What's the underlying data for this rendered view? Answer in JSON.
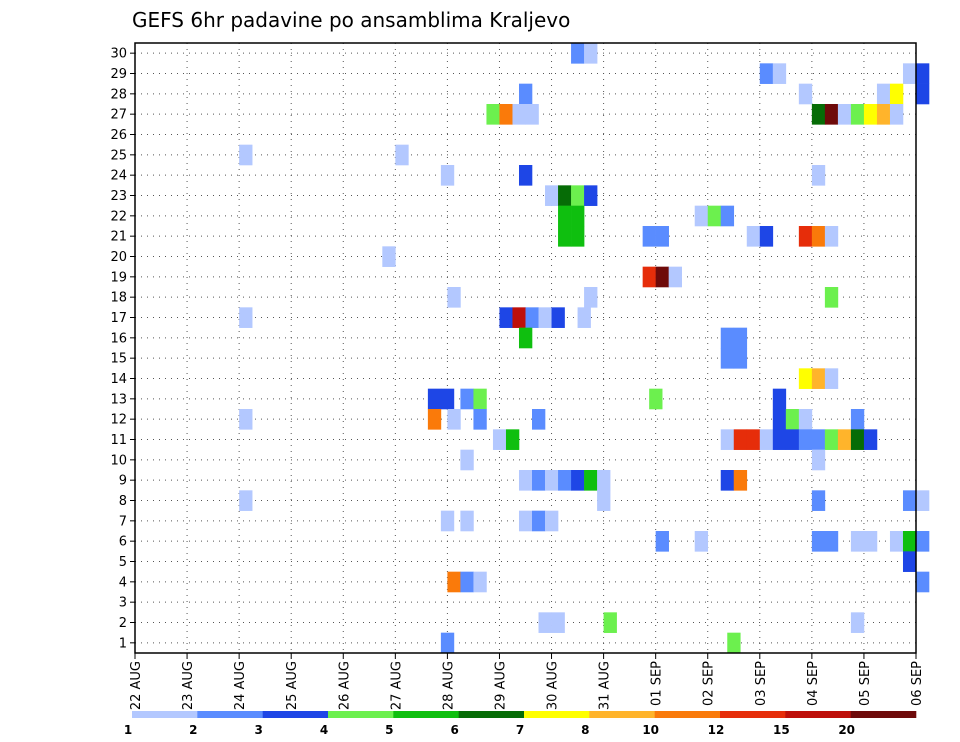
{
  "chart_data": {
    "type": "heatmap",
    "title": "GEFS 6hr padavine po ansamblima Kraljevo",
    "x_tick_labels": [
      "22 AUG",
      "23 AUG",
      "24 AUG",
      "25 AUG",
      "26 AUG",
      "27 AUG",
      "28 AUG",
      "29 AUG",
      "30 AUG",
      "31 AUG",
      "01 SEP",
      "02 SEP",
      "03 SEP",
      "04 SEP",
      "05 SEP",
      "06 SEP"
    ],
    "y_tick_labels": [
      "1",
      "2",
      "3",
      "4",
      "5",
      "6",
      "7",
      "8",
      "9",
      "10",
      "11",
      "12",
      "13",
      "14",
      "15",
      "16",
      "17",
      "18",
      "19",
      "20",
      "21",
      "22",
      "23",
      "24",
      "25",
      "26",
      "27",
      "28",
      "29",
      "30"
    ],
    "x_unit": "6-hour steps from 22 AUG 00Z",
    "x_range": [
      0,
      60
    ],
    "y_range": [
      0.5,
      30.5
    ],
    "grid": true,
    "legend": {
      "position": "bottom",
      "boundary_labels": [
        "1",
        "2",
        "3",
        "4",
        "5",
        "6",
        "7",
        "8",
        "10",
        "12",
        "15",
        "20"
      ],
      "colors": [
        "#b3c8ff",
        "#5a8cff",
        "#1e46e6",
        "#6cf04e",
        "#0fbf0f",
        "#066c06",
        "#ffff00",
        "#ffb42b",
        "#fa7a0a",
        "#e62d0a",
        "#be0f0a",
        "#6e0a0a"
      ]
    },
    "cells": [
      {
        "x": 34.0,
        "y": 30,
        "c": 2
      },
      {
        "x": 35.0,
        "y": 30,
        "c": 1
      },
      {
        "x": 48.5,
        "y": 29,
        "c": 2
      },
      {
        "x": 49.5,
        "y": 29,
        "c": 1
      },
      {
        "x": 59.5,
        "y": 29,
        "c": 1
      },
      {
        "x": 60.5,
        "y": 29,
        "c": 3
      },
      {
        "x": 30.0,
        "y": 28,
        "c": 2
      },
      {
        "x": 51.5,
        "y": 28,
        "c": 1
      },
      {
        "x": 57.5,
        "y": 28,
        "c": 1
      },
      {
        "x": 58.5,
        "y": 28,
        "c": 7
      },
      {
        "x": 60.5,
        "y": 28,
        "c": 3
      },
      {
        "x": 27.5,
        "y": 27,
        "c": 4
      },
      {
        "x": 28.5,
        "y": 27,
        "c": 9
      },
      {
        "x": 29.5,
        "y": 27,
        "c": 1
      },
      {
        "x": 30.5,
        "y": 27,
        "c": 1
      },
      {
        "x": 52.5,
        "y": 27,
        "c": 6
      },
      {
        "x": 53.5,
        "y": 27,
        "c": 12
      },
      {
        "x": 54.5,
        "y": 27,
        "c": 1
      },
      {
        "x": 55.5,
        "y": 27,
        "c": 4
      },
      {
        "x": 56.5,
        "y": 27,
        "c": 7
      },
      {
        "x": 57.5,
        "y": 27,
        "c": 8
      },
      {
        "x": 58.5,
        "y": 27,
        "c": 1
      },
      {
        "x": 8.5,
        "y": 25,
        "c": 1
      },
      {
        "x": 20.5,
        "y": 25,
        "c": 1
      },
      {
        "x": 24.0,
        "y": 24,
        "c": 1
      },
      {
        "x": 30.0,
        "y": 24,
        "c": 3
      },
      {
        "x": 52.5,
        "y": 24,
        "c": 1
      },
      {
        "x": 32.0,
        "y": 23,
        "c": 1
      },
      {
        "x": 33.0,
        "y": 23,
        "c": 6
      },
      {
        "x": 34.0,
        "y": 23,
        "c": 4
      },
      {
        "x": 35.0,
        "y": 23,
        "c": 3
      },
      {
        "x": 33.0,
        "y": 22,
        "c": 5
      },
      {
        "x": 34.0,
        "y": 22,
        "c": 5
      },
      {
        "x": 43.5,
        "y": 22,
        "c": 1
      },
      {
        "x": 44.5,
        "y": 22,
        "c": 4
      },
      {
        "x": 45.5,
        "y": 22,
        "c": 2
      },
      {
        "x": 33.0,
        "y": 21,
        "c": 5
      },
      {
        "x": 34.0,
        "y": 21,
        "c": 5
      },
      {
        "x": 39.5,
        "y": 21,
        "c": 2
      },
      {
        "x": 40.5,
        "y": 21,
        "c": 2
      },
      {
        "x": 47.5,
        "y": 21,
        "c": 1
      },
      {
        "x": 48.5,
        "y": 21,
        "c": 3
      },
      {
        "x": 51.5,
        "y": 21,
        "c": 10
      },
      {
        "x": 52.5,
        "y": 21,
        "c": 9
      },
      {
        "x": 53.5,
        "y": 21,
        "c": 1
      },
      {
        "x": 19.5,
        "y": 20,
        "c": 1
      },
      {
        "x": 39.5,
        "y": 19,
        "c": 10
      },
      {
        "x": 40.5,
        "y": 19,
        "c": 12
      },
      {
        "x": 41.5,
        "y": 19,
        "c": 1
      },
      {
        "x": 24.5,
        "y": 18,
        "c": 1
      },
      {
        "x": 35.0,
        "y": 18,
        "c": 1
      },
      {
        "x": 53.5,
        "y": 18,
        "c": 4
      },
      {
        "x": 8.5,
        "y": 17,
        "c": 1
      },
      {
        "x": 28.5,
        "y": 17,
        "c": 3
      },
      {
        "x": 29.5,
        "y": 17,
        "c": 11
      },
      {
        "x": 30.5,
        "y": 17,
        "c": 2
      },
      {
        "x": 31.5,
        "y": 17,
        "c": 1
      },
      {
        "x": 32.5,
        "y": 17,
        "c": 3
      },
      {
        "x": 34.5,
        "y": 17,
        "c": 1
      },
      {
        "x": 30.0,
        "y": 16,
        "c": 5
      },
      {
        "x": 45.5,
        "y": 16,
        "c": 2
      },
      {
        "x": 46.5,
        "y": 16,
        "c": 2
      },
      {
        "x": 45.5,
        "y": 15,
        "c": 2
      },
      {
        "x": 46.5,
        "y": 15,
        "c": 2
      },
      {
        "x": 51.5,
        "y": 14,
        "c": 7
      },
      {
        "x": 52.5,
        "y": 14,
        "c": 8
      },
      {
        "x": 53.5,
        "y": 14,
        "c": 1
      },
      {
        "x": 23.0,
        "y": 13,
        "c": 3
      },
      {
        "x": 24.0,
        "y": 13,
        "c": 3
      },
      {
        "x": 25.5,
        "y": 13,
        "c": 2
      },
      {
        "x": 26.5,
        "y": 13,
        "c": 4
      },
      {
        "x": 40.0,
        "y": 13,
        "c": 4
      },
      {
        "x": 49.5,
        "y": 13,
        "c": 3
      },
      {
        "x": 8.5,
        "y": 12,
        "c": 1
      },
      {
        "x": 23.0,
        "y": 12,
        "c": 9
      },
      {
        "x": 24.5,
        "y": 12,
        "c": 1
      },
      {
        "x": 26.5,
        "y": 12,
        "c": 2
      },
      {
        "x": 31.0,
        "y": 12,
        "c": 2
      },
      {
        "x": 49.5,
        "y": 12,
        "c": 3
      },
      {
        "x": 50.5,
        "y": 12,
        "c": 4
      },
      {
        "x": 51.5,
        "y": 12,
        "c": 1
      },
      {
        "x": 55.5,
        "y": 12,
        "c": 2
      },
      {
        "x": 28.0,
        "y": 11,
        "c": 1
      },
      {
        "x": 29.0,
        "y": 11,
        "c": 5
      },
      {
        "x": 45.5,
        "y": 11,
        "c": 1
      },
      {
        "x": 46.5,
        "y": 11,
        "c": 10
      },
      {
        "x": 47.5,
        "y": 11,
        "c": 10
      },
      {
        "x": 48.5,
        "y": 11,
        "c": 1
      },
      {
        "x": 49.5,
        "y": 11,
        "c": 3
      },
      {
        "x": 50.5,
        "y": 11,
        "c": 3
      },
      {
        "x": 51.5,
        "y": 11,
        "c": 2
      },
      {
        "x": 52.5,
        "y": 11,
        "c": 2
      },
      {
        "x": 53.5,
        "y": 11,
        "c": 4
      },
      {
        "x": 54.5,
        "y": 11,
        "c": 8
      },
      {
        "x": 55.5,
        "y": 11,
        "c": 6
      },
      {
        "x": 56.5,
        "y": 11,
        "c": 3
      },
      {
        "x": 25.5,
        "y": 10,
        "c": 1
      },
      {
        "x": 52.5,
        "y": 10,
        "c": 1
      },
      {
        "x": 30.0,
        "y": 9,
        "c": 1
      },
      {
        "x": 31.0,
        "y": 9,
        "c": 2
      },
      {
        "x": 32.0,
        "y": 9,
        "c": 1
      },
      {
        "x": 33.0,
        "y": 9,
        "c": 2
      },
      {
        "x": 34.0,
        "y": 9,
        "c": 3
      },
      {
        "x": 35.0,
        "y": 9,
        "c": 5
      },
      {
        "x": 36.0,
        "y": 9,
        "c": 1
      },
      {
        "x": 45.5,
        "y": 9,
        "c": 3
      },
      {
        "x": 46.5,
        "y": 9,
        "c": 9
      },
      {
        "x": 8.5,
        "y": 8,
        "c": 1
      },
      {
        "x": 36.0,
        "y": 8,
        "c": 1
      },
      {
        "x": 52.5,
        "y": 8,
        "c": 2
      },
      {
        "x": 59.5,
        "y": 8,
        "c": 2
      },
      {
        "x": 60.5,
        "y": 8,
        "c": 1
      },
      {
        "x": 24.0,
        "y": 7,
        "c": 1
      },
      {
        "x": 25.5,
        "y": 7,
        "c": 1
      },
      {
        "x": 30.0,
        "y": 7,
        "c": 1
      },
      {
        "x": 31.0,
        "y": 7,
        "c": 2
      },
      {
        "x": 32.0,
        "y": 7,
        "c": 1
      },
      {
        "x": 40.5,
        "y": 6,
        "c": 2
      },
      {
        "x": 43.5,
        "y": 6,
        "c": 1
      },
      {
        "x": 52.5,
        "y": 6,
        "c": 2
      },
      {
        "x": 53.5,
        "y": 6,
        "c": 2
      },
      {
        "x": 55.5,
        "y": 6,
        "c": 1
      },
      {
        "x": 56.5,
        "y": 6,
        "c": 1
      },
      {
        "x": 58.5,
        "y": 6,
        "c": 1
      },
      {
        "x": 59.5,
        "y": 6,
        "c": 5
      },
      {
        "x": 60.5,
        "y": 6,
        "c": 2
      },
      {
        "x": 59.5,
        "y": 5,
        "c": 3
      },
      {
        "x": 24.5,
        "y": 4,
        "c": 9
      },
      {
        "x": 25.5,
        "y": 4,
        "c": 2
      },
      {
        "x": 26.5,
        "y": 4,
        "c": 1
      },
      {
        "x": 60.5,
        "y": 4,
        "c": 2
      },
      {
        "x": 31.5,
        "y": 2,
        "c": 1
      },
      {
        "x": 32.5,
        "y": 2,
        "c": 1
      },
      {
        "x": 36.5,
        "y": 2,
        "c": 4
      },
      {
        "x": 55.5,
        "y": 2,
        "c": 1
      },
      {
        "x": 24.0,
        "y": 1,
        "c": 2
      },
      {
        "x": 46.0,
        "y": 1,
        "c": 4
      }
    ]
  }
}
